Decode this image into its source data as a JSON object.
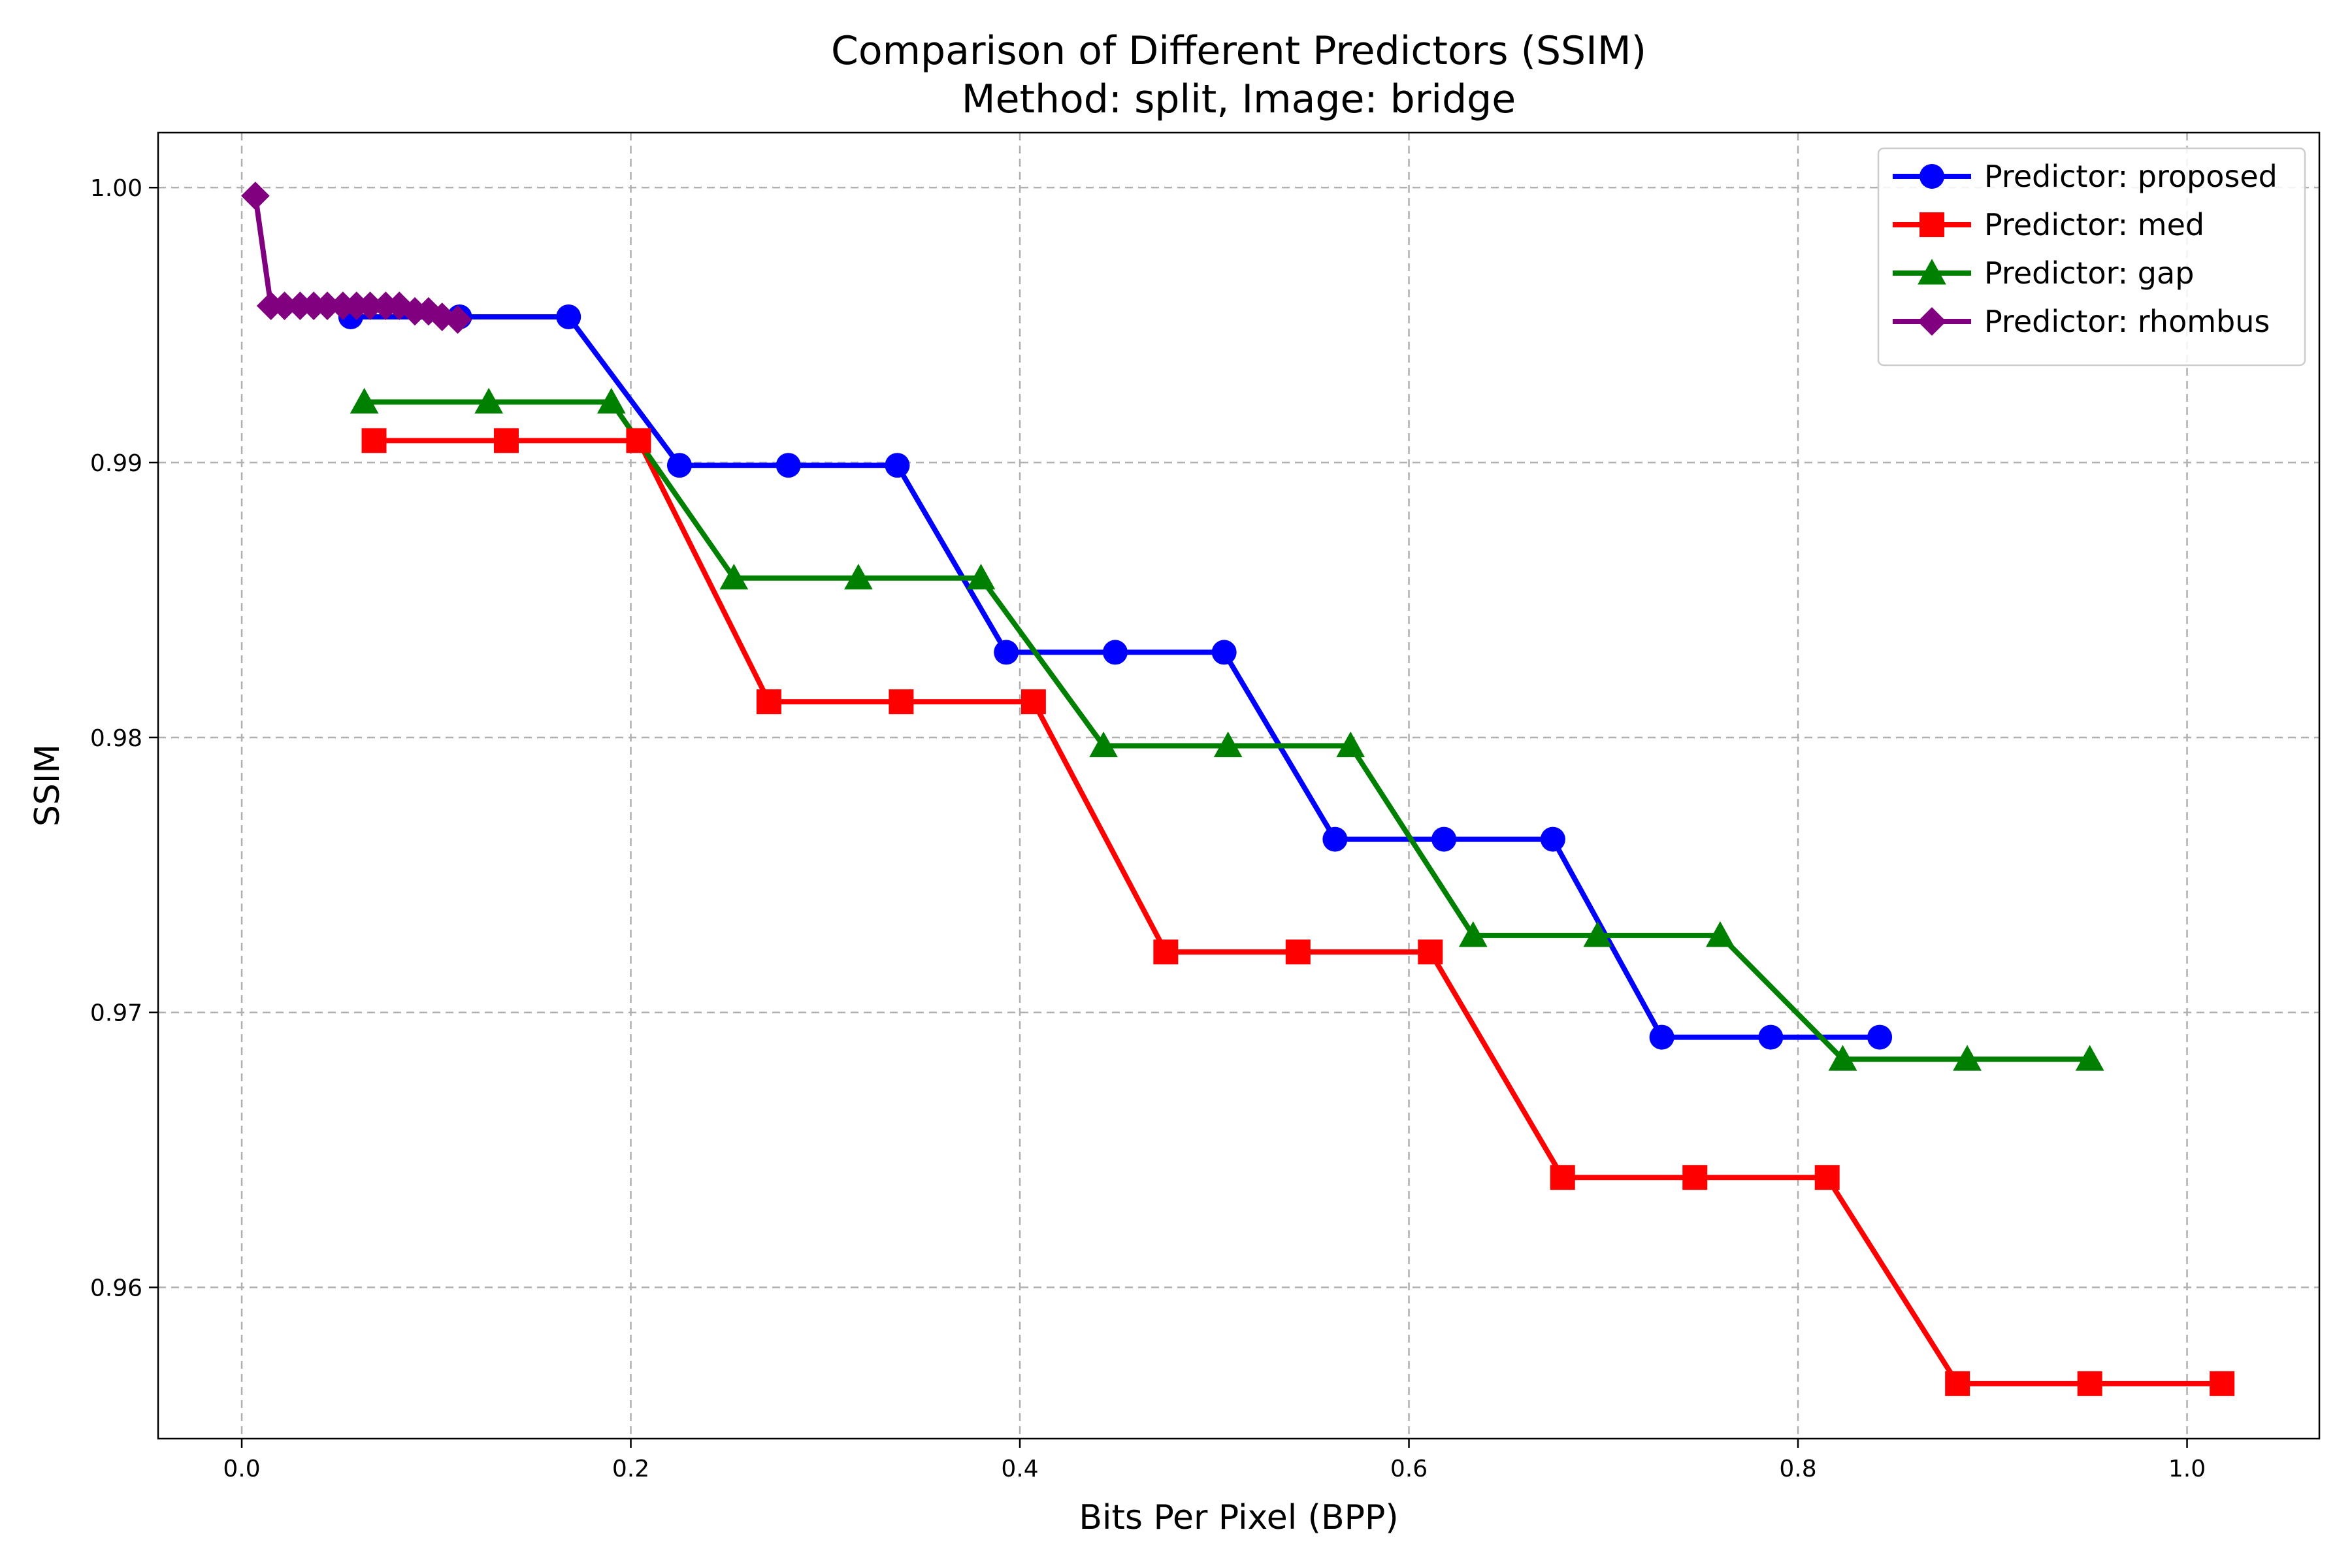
{
  "chart_data": {
    "type": "line",
    "title": "Comparison of Different Predictors (SSIM)",
    "subtitle": "Method: split, Image: bridge",
    "xlabel": "Bits Per Pixel (BPP)",
    "ylabel": "SSIM",
    "xlim": [
      -0.043,
      1.068
    ],
    "ylim": [
      0.9545,
      1.002
    ],
    "x_ticks": [
      0.0,
      0.2,
      0.4,
      0.6,
      0.8,
      1.0
    ],
    "x_tick_labels": [
      "0.0",
      "0.2",
      "0.4",
      "0.6",
      "0.8",
      "1.0"
    ],
    "y_ticks": [
      0.96,
      0.97,
      0.98,
      0.99,
      1.0
    ],
    "y_tick_labels": [
      "0.96",
      "0.97",
      "0.98",
      "0.99",
      "1.00"
    ],
    "grid": true,
    "legend_position": "top-right",
    "series": [
      {
        "name": "Predictor: proposed",
        "color": "#0000ff",
        "marker": "circle",
        "x": [
          0.056,
          0.112,
          0.168,
          0.225,
          0.281,
          0.337,
          0.393,
          0.449,
          0.505,
          0.562,
          0.618,
          0.674,
          0.73,
          0.786,
          0.842
        ],
        "y": [
          0.9953,
          0.9953,
          0.9953,
          0.9899,
          0.9899,
          0.9899,
          0.9831,
          0.9831,
          0.9831,
          0.9763,
          0.9763,
          0.9763,
          0.9691,
          0.9691,
          0.9691
        ]
      },
      {
        "name": "Predictor: med",
        "color": "#ff0000",
        "marker": "square",
        "x": [
          0.068,
          0.136,
          0.204,
          0.271,
          0.339,
          0.407,
          0.475,
          0.543,
          0.611,
          0.679,
          0.747,
          0.815,
          0.882,
          0.95,
          1.018
        ],
        "y": [
          0.9908,
          0.9908,
          0.9908,
          0.9813,
          0.9813,
          0.9813,
          0.9722,
          0.9722,
          0.9722,
          0.964,
          0.964,
          0.964,
          0.9565,
          0.9565,
          0.9565
        ]
      },
      {
        "name": "Predictor: gap",
        "color": "#008000",
        "marker": "triangle",
        "x": [
          0.063,
          0.127,
          0.19,
          0.253,
          0.317,
          0.38,
          0.443,
          0.507,
          0.57,
          0.633,
          0.697,
          0.76,
          0.823,
          0.887,
          0.95
        ],
        "y": [
          0.9922,
          0.9922,
          0.9922,
          0.9858,
          0.9858,
          0.9858,
          0.9797,
          0.9797,
          0.9797,
          0.9728,
          0.9728,
          0.9728,
          0.9683,
          0.9683,
          0.9683
        ]
      },
      {
        "name": "Predictor: rhombus",
        "color": "#800080",
        "marker": "diamond",
        "x": [
          0.007,
          0.015,
          0.022,
          0.03,
          0.037,
          0.044,
          0.052,
          0.059,
          0.066,
          0.074,
          0.081,
          0.089,
          0.096,
          0.103,
          0.111
        ],
        "y": [
          0.9997,
          0.9957,
          0.9957,
          0.9957,
          0.9957,
          0.9957,
          0.9957,
          0.9957,
          0.9957,
          0.9957,
          0.9957,
          0.9955,
          0.9955,
          0.9953,
          0.9952
        ]
      }
    ]
  }
}
